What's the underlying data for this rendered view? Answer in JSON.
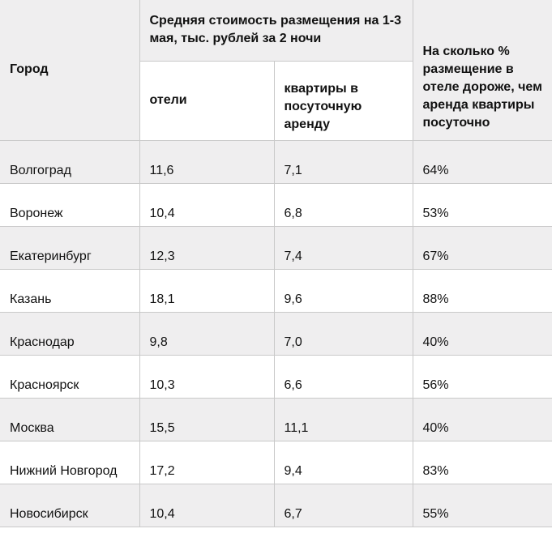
{
  "header": {
    "city": "Город",
    "group": "Средняя стоимость размещения на 1-3 мая, тыс. рублей за 2 ночи",
    "hotels": "отели",
    "apartments": "квартиры в посуточную аренду",
    "diff": "На сколько % размещение в отеле дороже, чем аренда квартиры посуточно"
  },
  "table": {
    "rows": [
      [
        "Волгоград",
        "11,6",
        "7,1",
        "64%"
      ],
      [
        "Воронеж",
        "10,4",
        "6,8",
        "53%"
      ],
      [
        "Екатеринбург",
        "12,3",
        "7,4",
        "67%"
      ],
      [
        "Казань",
        "18,1",
        "9,6",
        "88%"
      ],
      [
        "Краснодар",
        "9,8",
        "7,0",
        "40%"
      ],
      [
        "Красноярск",
        "10,3",
        "6,6",
        "56%"
      ],
      [
        "Москва",
        "15,5",
        "11,1",
        "40%"
      ],
      [
        "Нижний Новгород",
        "17,2",
        "9,4",
        "83%"
      ],
      [
        "Новосибирск",
        "10,4",
        "6,7",
        "55%"
      ]
    ]
  }
}
